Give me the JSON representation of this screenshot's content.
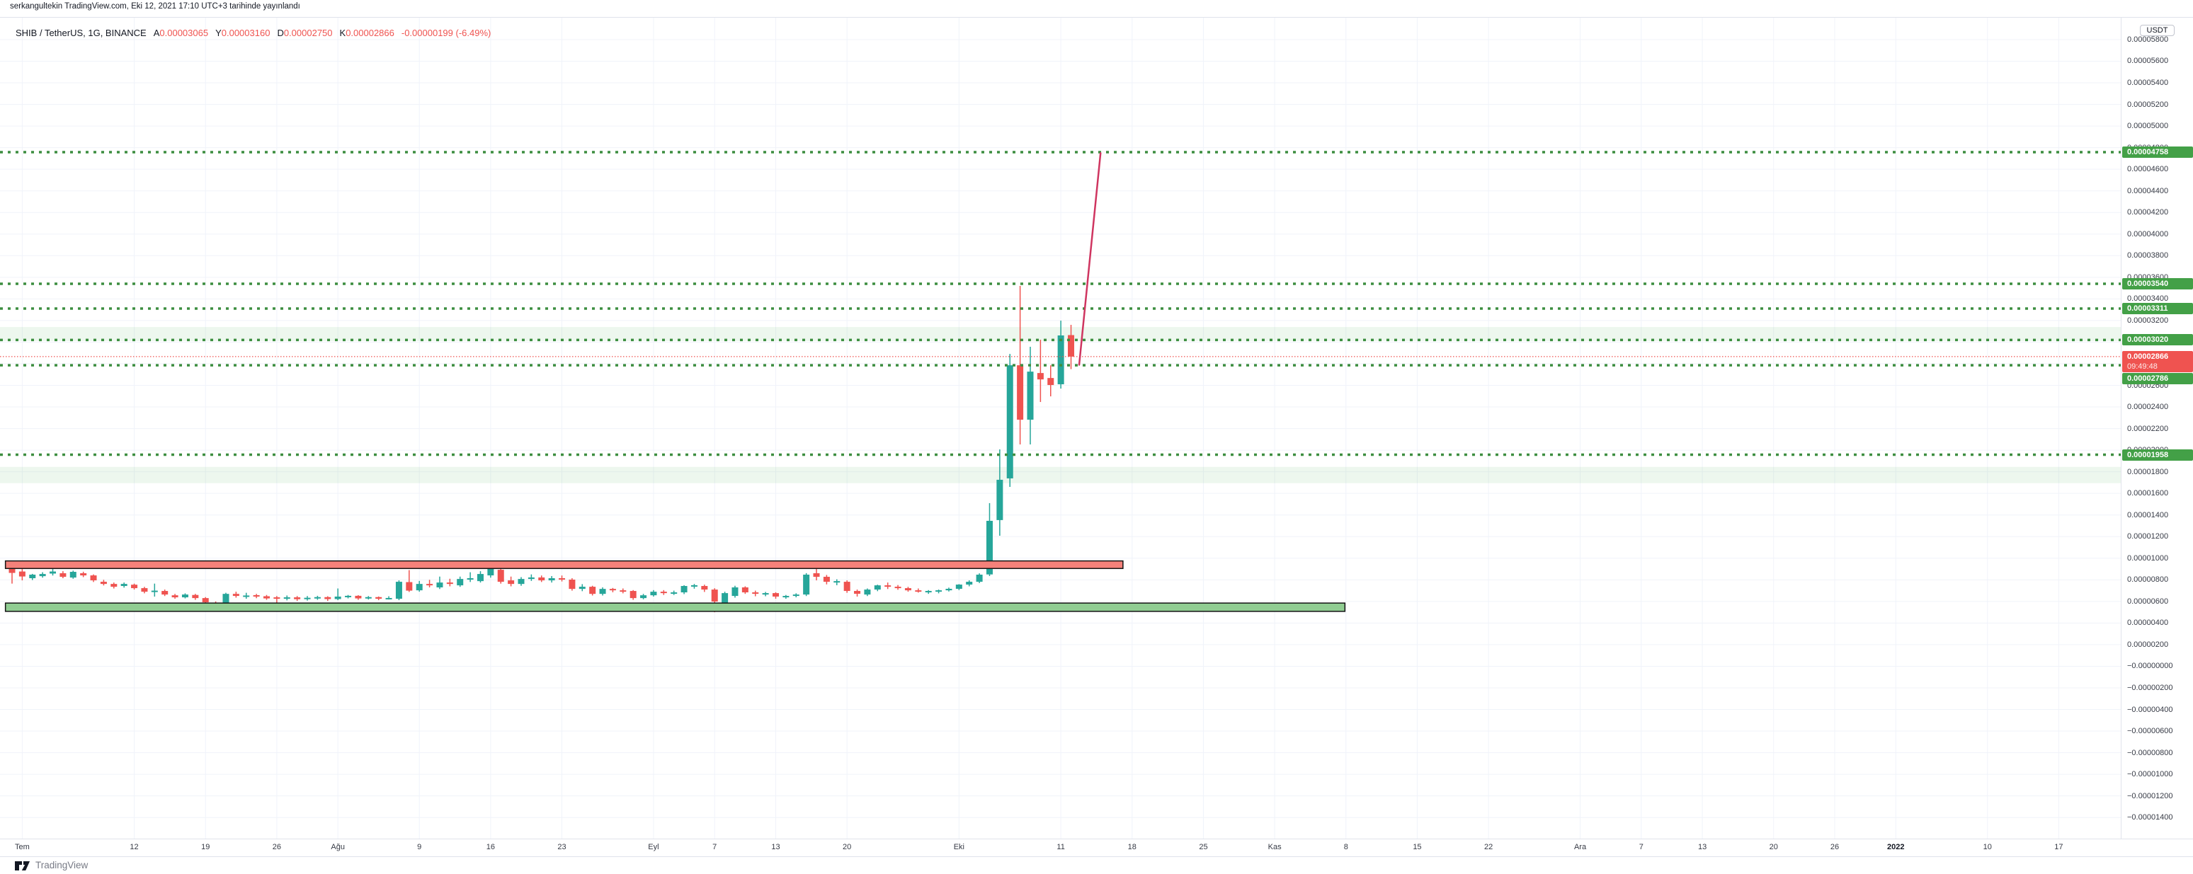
{
  "header": {
    "published_line": "serkangultekin TradingView.com, Eki 12, 2021 17:10 UTC+3 tarihinde yayınlandı"
  },
  "legend": {
    "symbol_title": "SHIB / TetherUS, 1G, BINANCE",
    "items": [
      {
        "prefix": "A",
        "value": "0.00003065"
      },
      {
        "prefix": "Y",
        "value": "0.00003160"
      },
      {
        "prefix": "D",
        "value": "0.00002750"
      },
      {
        "prefix": "K",
        "value": "0.00002866"
      }
    ],
    "change": "-0.00000199 (-6.49%)"
  },
  "axis": {
    "currency": "USDT"
  },
  "footer": {
    "brand": "TradingView"
  },
  "chart_data": {
    "type": "candlestick",
    "title": "SHIB / TetherUS, 1G, BINANCE",
    "symbol": "SHIB / TetherUS",
    "exchange": "BINANCE",
    "interval_label": "1G",
    "quote_currency": "USDT",
    "price_unit": "values are in 1e-8 USDT (e.g. 2866 = 0.00002866)",
    "x_unit": "days since first visible candle (2021-06-30, Turkish month labels)",
    "grid": true,
    "legend_position": "top-left",
    "colors": {
      "up": "#26a69a",
      "down": "#ef5350",
      "grid": "#f0f3fa",
      "level_line": "#3d8e40",
      "level_label_bg": "#43a047",
      "current_line": "#ef5350",
      "trend": "#cf3560",
      "zone_red_fill": "#f5817a",
      "zone_green_fill": "#90cd92",
      "zone_border": "#141414"
    },
    "price_axis": {
      "tick_first": 5800,
      "tick_last": -1400,
      "tick_step": -200,
      "top_price": 6020,
      "bottom_price": -1595
    },
    "levels": [
      {
        "price": 4758,
        "label": "0.00004758"
      },
      {
        "price": 3540,
        "label": "0.00003540"
      },
      {
        "price": 3311,
        "label": "0.00003311"
      },
      {
        "price": 3020,
        "label": "0.00003020"
      },
      {
        "price": 2786,
        "label": "0.00002786"
      },
      {
        "price": 1958,
        "label": "0.00001958"
      }
    ],
    "current_price": {
      "price": 2866,
      "label": "0.00002866",
      "countdown": "09:49:48",
      "direction": "down"
    },
    "zones": [
      {
        "name": "supply-zone-red",
        "price_top": 975,
        "price_bottom": 905,
        "day_from": -0.65,
        "day_to": 109.1
      },
      {
        "name": "demand-zone-green",
        "price_top": 585,
        "price_bottom": 508,
        "day_from": -0.65,
        "day_to": 130.9
      }
    ],
    "soft_zones": [
      {
        "price_top": 3140,
        "price_bottom": 3010
      },
      {
        "price_top": 1845,
        "price_bottom": 1695
      }
    ],
    "trend_line": {
      "from_day": 104.8,
      "from_price": 2790,
      "to_day": 106.9,
      "to_price": 4750
    },
    "time_ticks": [
      {
        "label": "Tem",
        "day": 1
      },
      {
        "label": "12",
        "day": 12
      },
      {
        "label": "19",
        "day": 19
      },
      {
        "label": "26",
        "day": 26
      },
      {
        "label": "Ağu",
        "day": 32
      },
      {
        "label": "9",
        "day": 40
      },
      {
        "label": "16",
        "day": 47
      },
      {
        "label": "23",
        "day": 54
      },
      {
        "label": "Eyl",
        "day": 63
      },
      {
        "label": "7",
        "day": 69
      },
      {
        "label": "13",
        "day": 75
      },
      {
        "label": "20",
        "day": 82
      },
      {
        "label": "Eki",
        "day": 93
      },
      {
        "label": "11",
        "day": 103
      },
      {
        "label": "18",
        "day": 110
      },
      {
        "label": "25",
        "day": 117
      },
      {
        "label": "Kas",
        "day": 124
      },
      {
        "label": "8",
        "day": 131
      },
      {
        "label": "15",
        "day": 138
      },
      {
        "label": "22",
        "day": 145
      },
      {
        "label": "Ara",
        "day": 154
      },
      {
        "label": "7",
        "day": 160
      },
      {
        "label": "13",
        "day": 166
      },
      {
        "label": "20",
        "day": 173
      },
      {
        "label": "26",
        "day": 179
      },
      {
        "label": "2022",
        "day": 185,
        "bold": true
      },
      {
        "label": "10",
        "day": 194
      },
      {
        "label": "17",
        "day": 201
      }
    ],
    "candles": [
      [
        0,
        903,
        975,
        765,
        864
      ],
      [
        1,
        877,
        900,
        795,
        831
      ],
      [
        2,
        815,
        855,
        798,
        848
      ],
      [
        3,
        834,
        870,
        820,
        854
      ],
      [
        4,
        858,
        935,
        840,
        877
      ],
      [
        5,
        861,
        880,
        815,
        828
      ],
      [
        6,
        821,
        885,
        810,
        874
      ],
      [
        7,
        861,
        875,
        825,
        841
      ],
      [
        8,
        841,
        850,
        780,
        795
      ],
      [
        9,
        782,
        800,
        748,
        762
      ],
      [
        10,
        762,
        775,
        720,
        736
      ],
      [
        11,
        743,
        775,
        728,
        762
      ],
      [
        12,
        755,
        765,
        710,
        723
      ],
      [
        13,
        723,
        735,
        675,
        690
      ],
      [
        14,
        695,
        765,
        645,
        700
      ],
      [
        15,
        697,
        710,
        650,
        664
      ],
      [
        16,
        657,
        670,
        625,
        638
      ],
      [
        17,
        638,
        675,
        628,
        664
      ],
      [
        18,
        660,
        670,
        615,
        631
      ],
      [
        19,
        631,
        640,
        575,
        592
      ],
      [
        20,
        586,
        600,
        525,
        559
      ],
      [
        21,
        559,
        680,
        545,
        670
      ],
      [
        22,
        670,
        690,
        635,
        651
      ],
      [
        23,
        645,
        680,
        625,
        655
      ],
      [
        24,
        658,
        670,
        630,
        648
      ],
      [
        25,
        648,
        660,
        615,
        628
      ],
      [
        26,
        638,
        650,
        570,
        632
      ],
      [
        27,
        628,
        655,
        610,
        638
      ],
      [
        28,
        638,
        650,
        605,
        621
      ],
      [
        29,
        621,
        650,
        608,
        634
      ],
      [
        30,
        634,
        652,
        615,
        640
      ],
      [
        31,
        640,
        648,
        605,
        622
      ],
      [
        32,
        622,
        720,
        612,
        645
      ],
      [
        33,
        645,
        660,
        628,
        652
      ],
      [
        34,
        652,
        658,
        615,
        628
      ],
      [
        35,
        628,
        650,
        618,
        640
      ],
      [
        36,
        640,
        646,
        612,
        625
      ],
      [
        37,
        625,
        648,
        618,
        632
      ],
      [
        38,
        625,
        795,
        612,
        782
      ],
      [
        39,
        779,
        890,
        688,
        700
      ],
      [
        40,
        703,
        790,
        690,
        762
      ],
      [
        41,
        762,
        800,
        730,
        749
      ],
      [
        42,
        730,
        830,
        715,
        775
      ],
      [
        43,
        775,
        810,
        740,
        762
      ],
      [
        44,
        749,
        830,
        735,
        808
      ],
      [
        45,
        808,
        870,
        780,
        815
      ],
      [
        46,
        788,
        880,
        775,
        854
      ],
      [
        47,
        841,
        930,
        820,
        906
      ],
      [
        48,
        893,
        960,
        765,
        782
      ],
      [
        49,
        795,
        830,
        740,
        762
      ],
      [
        50,
        762,
        825,
        745,
        808
      ],
      [
        51,
        808,
        850,
        790,
        822
      ],
      [
        52,
        822,
        840,
        780,
        795
      ],
      [
        53,
        795,
        835,
        775,
        815
      ],
      [
        54,
        815,
        840,
        785,
        802
      ],
      [
        55,
        802,
        815,
        700,
        716
      ],
      [
        56,
        716,
        760,
        695,
        736
      ],
      [
        57,
        736,
        745,
        655,
        670
      ],
      [
        58,
        670,
        730,
        655,
        716
      ],
      [
        59,
        716,
        725,
        685,
        703
      ],
      [
        60,
        703,
        720,
        675,
        697
      ],
      [
        61,
        697,
        705,
        615,
        631
      ],
      [
        62,
        631,
        670,
        620,
        657
      ],
      [
        63,
        657,
        705,
        645,
        690
      ],
      [
        64,
        690,
        705,
        660,
        677
      ],
      [
        65,
        677,
        700,
        660,
        684
      ],
      [
        66,
        684,
        750,
        668,
        743
      ],
      [
        67,
        743,
        762,
        718,
        750
      ],
      [
        68,
        743,
        755,
        688,
        710
      ],
      [
        69,
        710,
        722,
        500,
        599
      ],
      [
        70,
        586,
        690,
        533,
        677
      ],
      [
        71,
        651,
        745,
        635,
        730
      ],
      [
        72,
        730,
        740,
        670,
        684
      ],
      [
        73,
        684,
        700,
        648,
        671
      ],
      [
        74,
        664,
        688,
        648,
        677
      ],
      [
        75,
        677,
        685,
        625,
        645
      ],
      [
        76,
        638,
        660,
        625,
        651
      ],
      [
        77,
        651,
        675,
        638,
        664
      ],
      [
        78,
        664,
        862,
        650,
        848
      ],
      [
        79,
        861,
        953,
        795,
        828
      ],
      [
        80,
        828,
        845,
        758,
        782
      ],
      [
        81,
        775,
        805,
        750,
        788
      ],
      [
        82,
        782,
        795,
        680,
        697
      ],
      [
        83,
        697,
        710,
        645,
        671
      ],
      [
        84,
        664,
        720,
        650,
        710
      ],
      [
        85,
        710,
        755,
        695,
        749
      ],
      [
        86,
        749,
        775,
        715,
        736
      ],
      [
        87,
        736,
        752,
        708,
        723
      ],
      [
        88,
        723,
        735,
        690,
        703
      ],
      [
        89,
        703,
        720,
        682,
        697
      ],
      [
        90,
        684,
        705,
        670,
        697
      ],
      [
        91,
        690,
        710,
        675,
        703
      ],
      [
        92,
        703,
        728,
        692,
        717
      ],
      [
        93,
        717,
        760,
        705,
        756
      ],
      [
        94,
        756,
        795,
        740,
        782
      ],
      [
        95,
        782,
        860,
        770,
        848
      ],
      [
        96,
        850,
        1510,
        835,
        1346
      ],
      [
        97,
        1353,
        2007,
        1208,
        1726
      ],
      [
        98,
        1739,
        2891,
        1660,
        2786
      ],
      [
        99,
        2786,
        3520,
        2053,
        2282
      ],
      [
        100,
        2282,
        2957,
        2053,
        2727
      ],
      [
        101,
        2714,
        3022,
        2446,
        2655
      ],
      [
        102,
        2668,
        2786,
        2498,
        2603
      ],
      [
        103,
        2610,
        3199,
        2570,
        3062
      ],
      [
        104,
        3065,
        3160,
        2750,
        2866
      ]
    ]
  }
}
